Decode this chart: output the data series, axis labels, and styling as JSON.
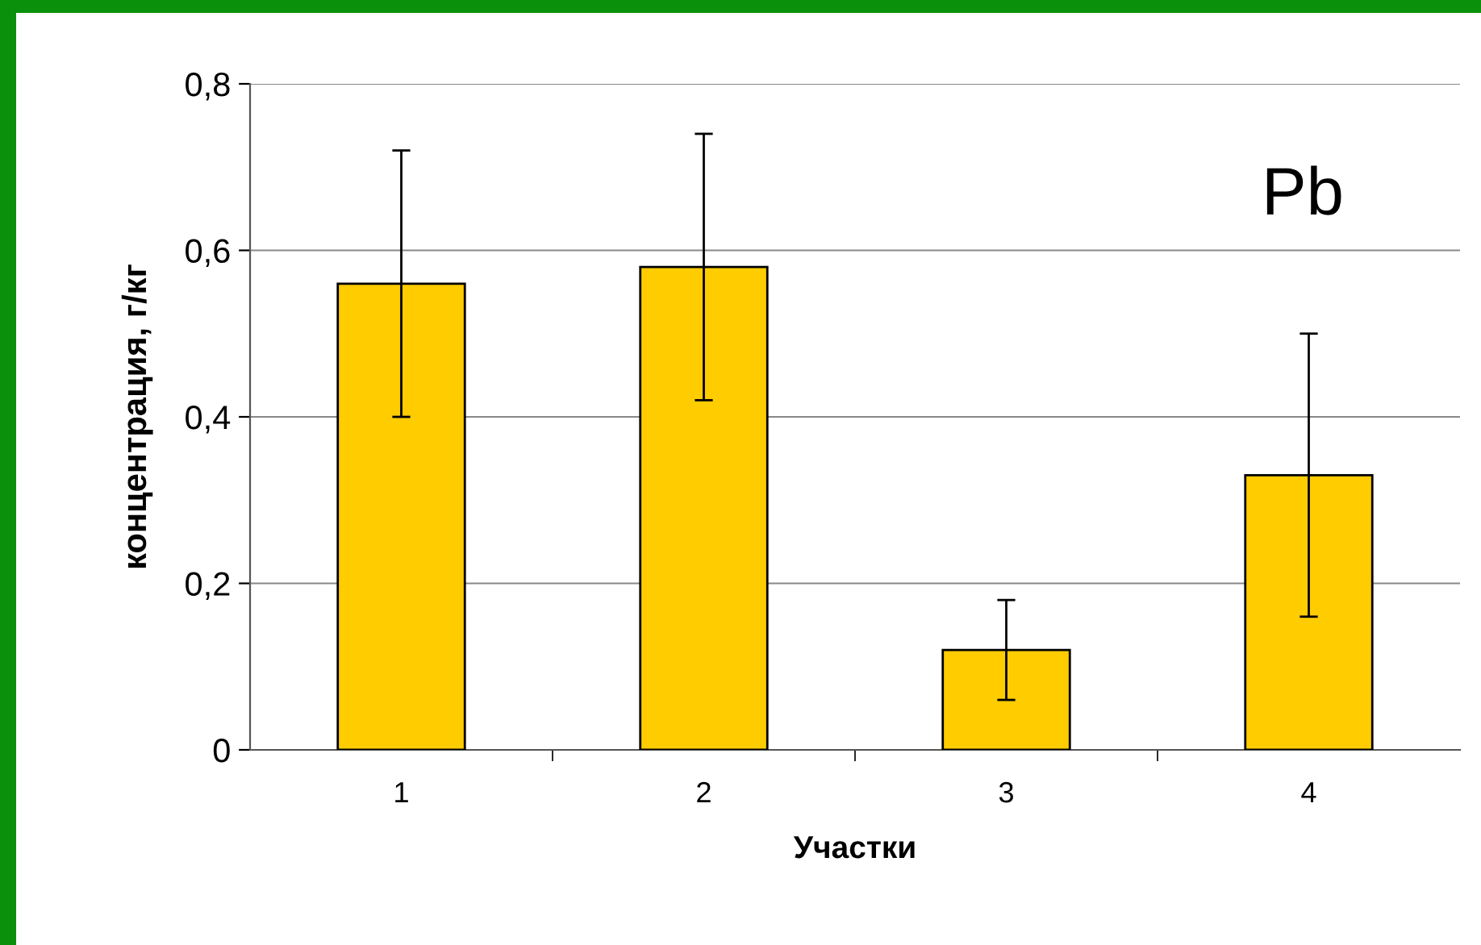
{
  "chart_data": {
    "type": "bar",
    "xlabel": "Участки",
    "ylabel": "концентрация, г/кг",
    "annotations": [
      "Pb"
    ],
    "categories": [
      "1",
      "2",
      "3",
      "4"
    ],
    "values": [
      0.56,
      0.58,
      0.12,
      0.33
    ],
    "errors": [
      0.16,
      0.16,
      0.06,
      0.17
    ],
    "color": "#ffcc00",
    "ylim": [
      0,
      0.8
    ],
    "yticks": [
      {
        "value": 0,
        "label": "0"
      },
      {
        "value": 0.2,
        "label": "0,2"
      },
      {
        "value": 0.4,
        "label": "0,4"
      },
      {
        "value": 0.6,
        "label": "0,6"
      },
      {
        "value": 0.8,
        "label": "0,8"
      }
    ],
    "grid": "y"
  }
}
